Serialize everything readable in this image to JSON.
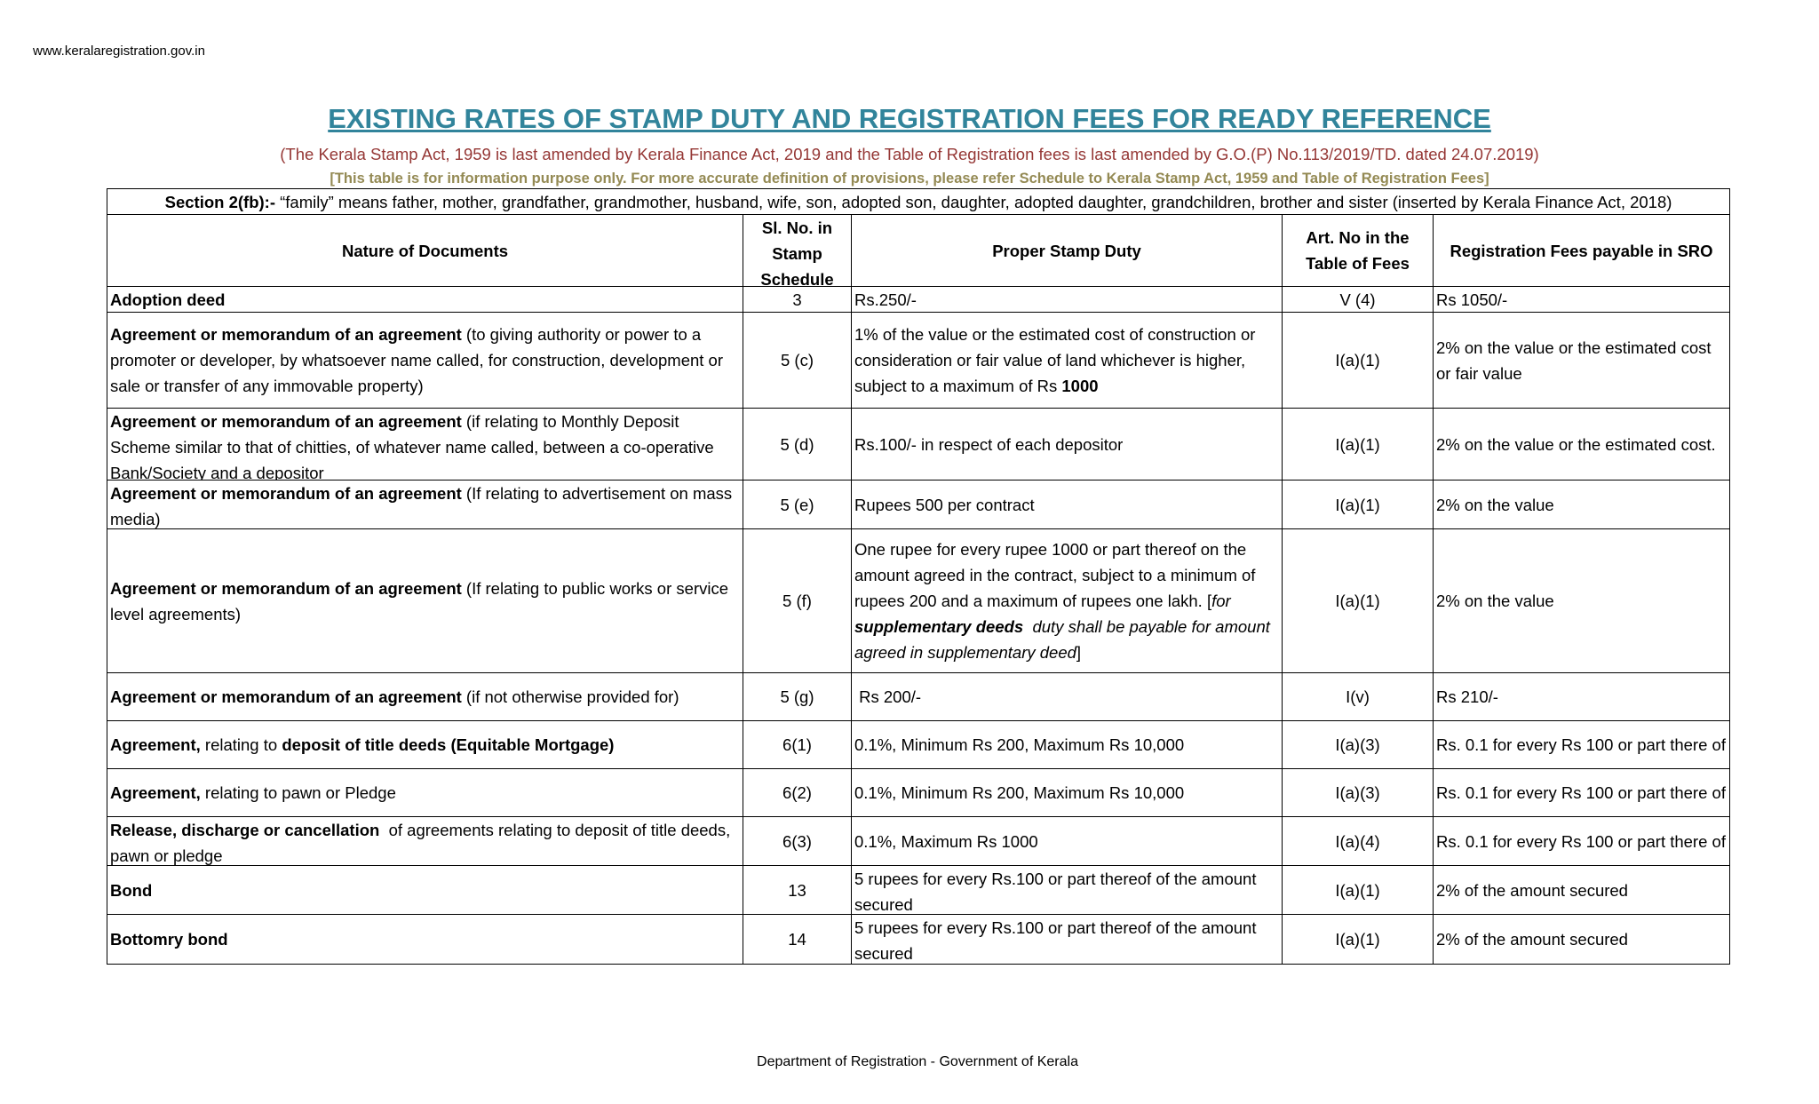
{
  "header": {
    "url": "www.keralaregistration.gov.in",
    "title": "EXISTING RATES OF STAMP DUTY AND REGISTRATION FEES FOR READY REFERENCE",
    "subtitle": "(The Kerala Stamp Act, 1959 is last amended by Kerala Finance Act, 2019 and the Table of Registration fees is last amended by G.O.(P) No.113/2019/TD. dated 24.07.2019)",
    "note": "[This table is for information purpose only. For more accurate definition of provisions, please refer Schedule to Kerala Stamp Act, 1959 and Table of Registration Fees]"
  },
  "table": {
    "section": [
      {
        "text": "Section 2(fb):-",
        "bold": true
      },
      {
        "text": " “family” means father, mother, grandfather, grandmother, husband, wife, son, adopted son, daughter, adopted daughter, grandchildren, brother and sister (inserted by Kerala Finance Act, 2018)"
      }
    ],
    "columns": [
      "Nature of Documents",
      "Sl. No.  in Stamp Schedule",
      "Proper Stamp Duty",
      "Art. No  in the Table of Fees",
      "Registration Fees payable in SRO"
    ],
    "rows": [
      {
        "nature": [
          {
            "text": "Adoption deed",
            "bold": true
          }
        ],
        "sl": "3",
        "duty": [
          {
            "text": "Rs.250/-"
          }
        ],
        "art": "V (4)",
        "fee": "Rs 1050/-"
      },
      {
        "nature": [
          {
            "text": "Agreement or memorandum of an agreement",
            "bold": true
          },
          {
            "text": " (to giving authority or power to a promoter or developer, by whatsoever name called, for construction, development or sale or transfer of any immovable property)"
          }
        ],
        "sl": "5 (c)",
        "duty": [
          {
            "text": "1% of the value or the estimated cost of construction or consideration or fair value of land whichever is higher, subject to a maximum of Rs "
          },
          {
            "text": "1000",
            "bold": true
          }
        ],
        "art": "I(a)(1)",
        "fee": "2% on the value or the estimated cost or fair value"
      },
      {
        "nature": [
          {
            "text": "Agreement or memorandum of an agreement",
            "bold": true
          },
          {
            "text": " (if relating to Monthly Deposit Scheme similar to that of chitties, of whatever name called, between a co-operative Bank/Society and a depositor"
          }
        ],
        "sl": "5 (d)",
        "duty": [
          {
            "text": "Rs.100/- in respect of each depositor"
          }
        ],
        "art": "I(a)(1)",
        "fee": "2% on the value or the estimated cost."
      },
      {
        "nature": [
          {
            "text": "Agreement or memorandum of an agreement",
            "bold": true
          },
          {
            "text": " (If relating to advertisement on mass media)"
          }
        ],
        "sl": "5 (e)",
        "duty": [
          {
            "text": "Rupees 500 per contract"
          }
        ],
        "art": "I(a)(1)",
        "fee": "2% on the value"
      },
      {
        "nature": [
          {
            "text": "Agreement or memorandum of an agreement",
            "bold": true
          },
          {
            "text": " (If relating to public works or service level agreements)"
          }
        ],
        "sl": "5 (f)",
        "duty": [
          {
            "text": "One rupee for every rupee 1000 or part thereof on the amount agreed in the contract, subject to a minimum of rupees 200 and a maximum of rupees one lakh. ["
          },
          {
            "text": "for ",
            "italic": true
          },
          {
            "text": "supplementary deeds",
            "bold": true,
            "italic": true
          },
          {
            "text": "  duty shall be payable for amount agreed in supplementary deed",
            "italic": true
          },
          {
            "text": "]"
          }
        ],
        "art": "I(a)(1)",
        "fee": "2% on the value"
      },
      {
        "nature": [
          {
            "text": "Agreement or memorandum of an agreement",
            "bold": true
          },
          {
            "text": " (if not otherwise provided for)"
          }
        ],
        "sl": "5 (g)",
        "duty": [
          {
            "text": " Rs 200/-"
          }
        ],
        "art": "I(v)",
        "fee": "Rs 210/-"
      },
      {
        "nature": [
          {
            "text": "Agreement,",
            "bold": true
          },
          {
            "text": " relating to "
          },
          {
            "text": "deposit of title deeds (Equitable Mortgage)",
            "bold": true
          }
        ],
        "sl": "6(1)",
        "duty": [
          {
            "text": "0.1%, Minimum Rs 200, Maximum Rs 10,000"
          }
        ],
        "art": "I(a)(3)",
        "fee": "Rs. 0.1 for every Rs 100 or part there of"
      },
      {
        "nature": [
          {
            "text": "Agreement,",
            "bold": true
          },
          {
            "text": " relating to pawn or Pledge"
          }
        ],
        "sl": "6(2)",
        "duty": [
          {
            "text": "0.1%, Minimum Rs 200, Maximum Rs 10,000"
          }
        ],
        "art": "I(a)(3)",
        "fee": "Rs. 0.1 for every Rs 100 or part there of"
      },
      {
        "nature": [
          {
            "text": "Release, discharge or cancellation",
            "bold": true
          },
          {
            "text": "  of agreements relating to deposit of title deeds, pawn or pledge"
          }
        ],
        "sl": "6(3)",
        "duty": [
          {
            "text": "0.1%, Maximum Rs 1000"
          }
        ],
        "art": "I(a)(4)",
        "fee": "Rs. 0.1 for every Rs 100 or part there of"
      },
      {
        "nature": [
          {
            "text": "Bond",
            "bold": true
          }
        ],
        "sl": "13",
        "duty": [
          {
            "text": "5 rupees for every Rs.100 or part thereof of the amount secured"
          }
        ],
        "art": "I(a)(1)",
        "fee": "2% of the amount secured"
      },
      {
        "nature": [
          {
            "text": "Bottomry bond",
            "bold": true
          }
        ],
        "sl": "14",
        "duty": [
          {
            "text": "5 rupees for every Rs.100 or part thereof of the amount secured"
          }
        ],
        "art": "I(a)(1)",
        "fee": "2% of the amount secured"
      }
    ]
  },
  "footer": {
    "text": "Department of Registration - Government of Kerala"
  }
}
